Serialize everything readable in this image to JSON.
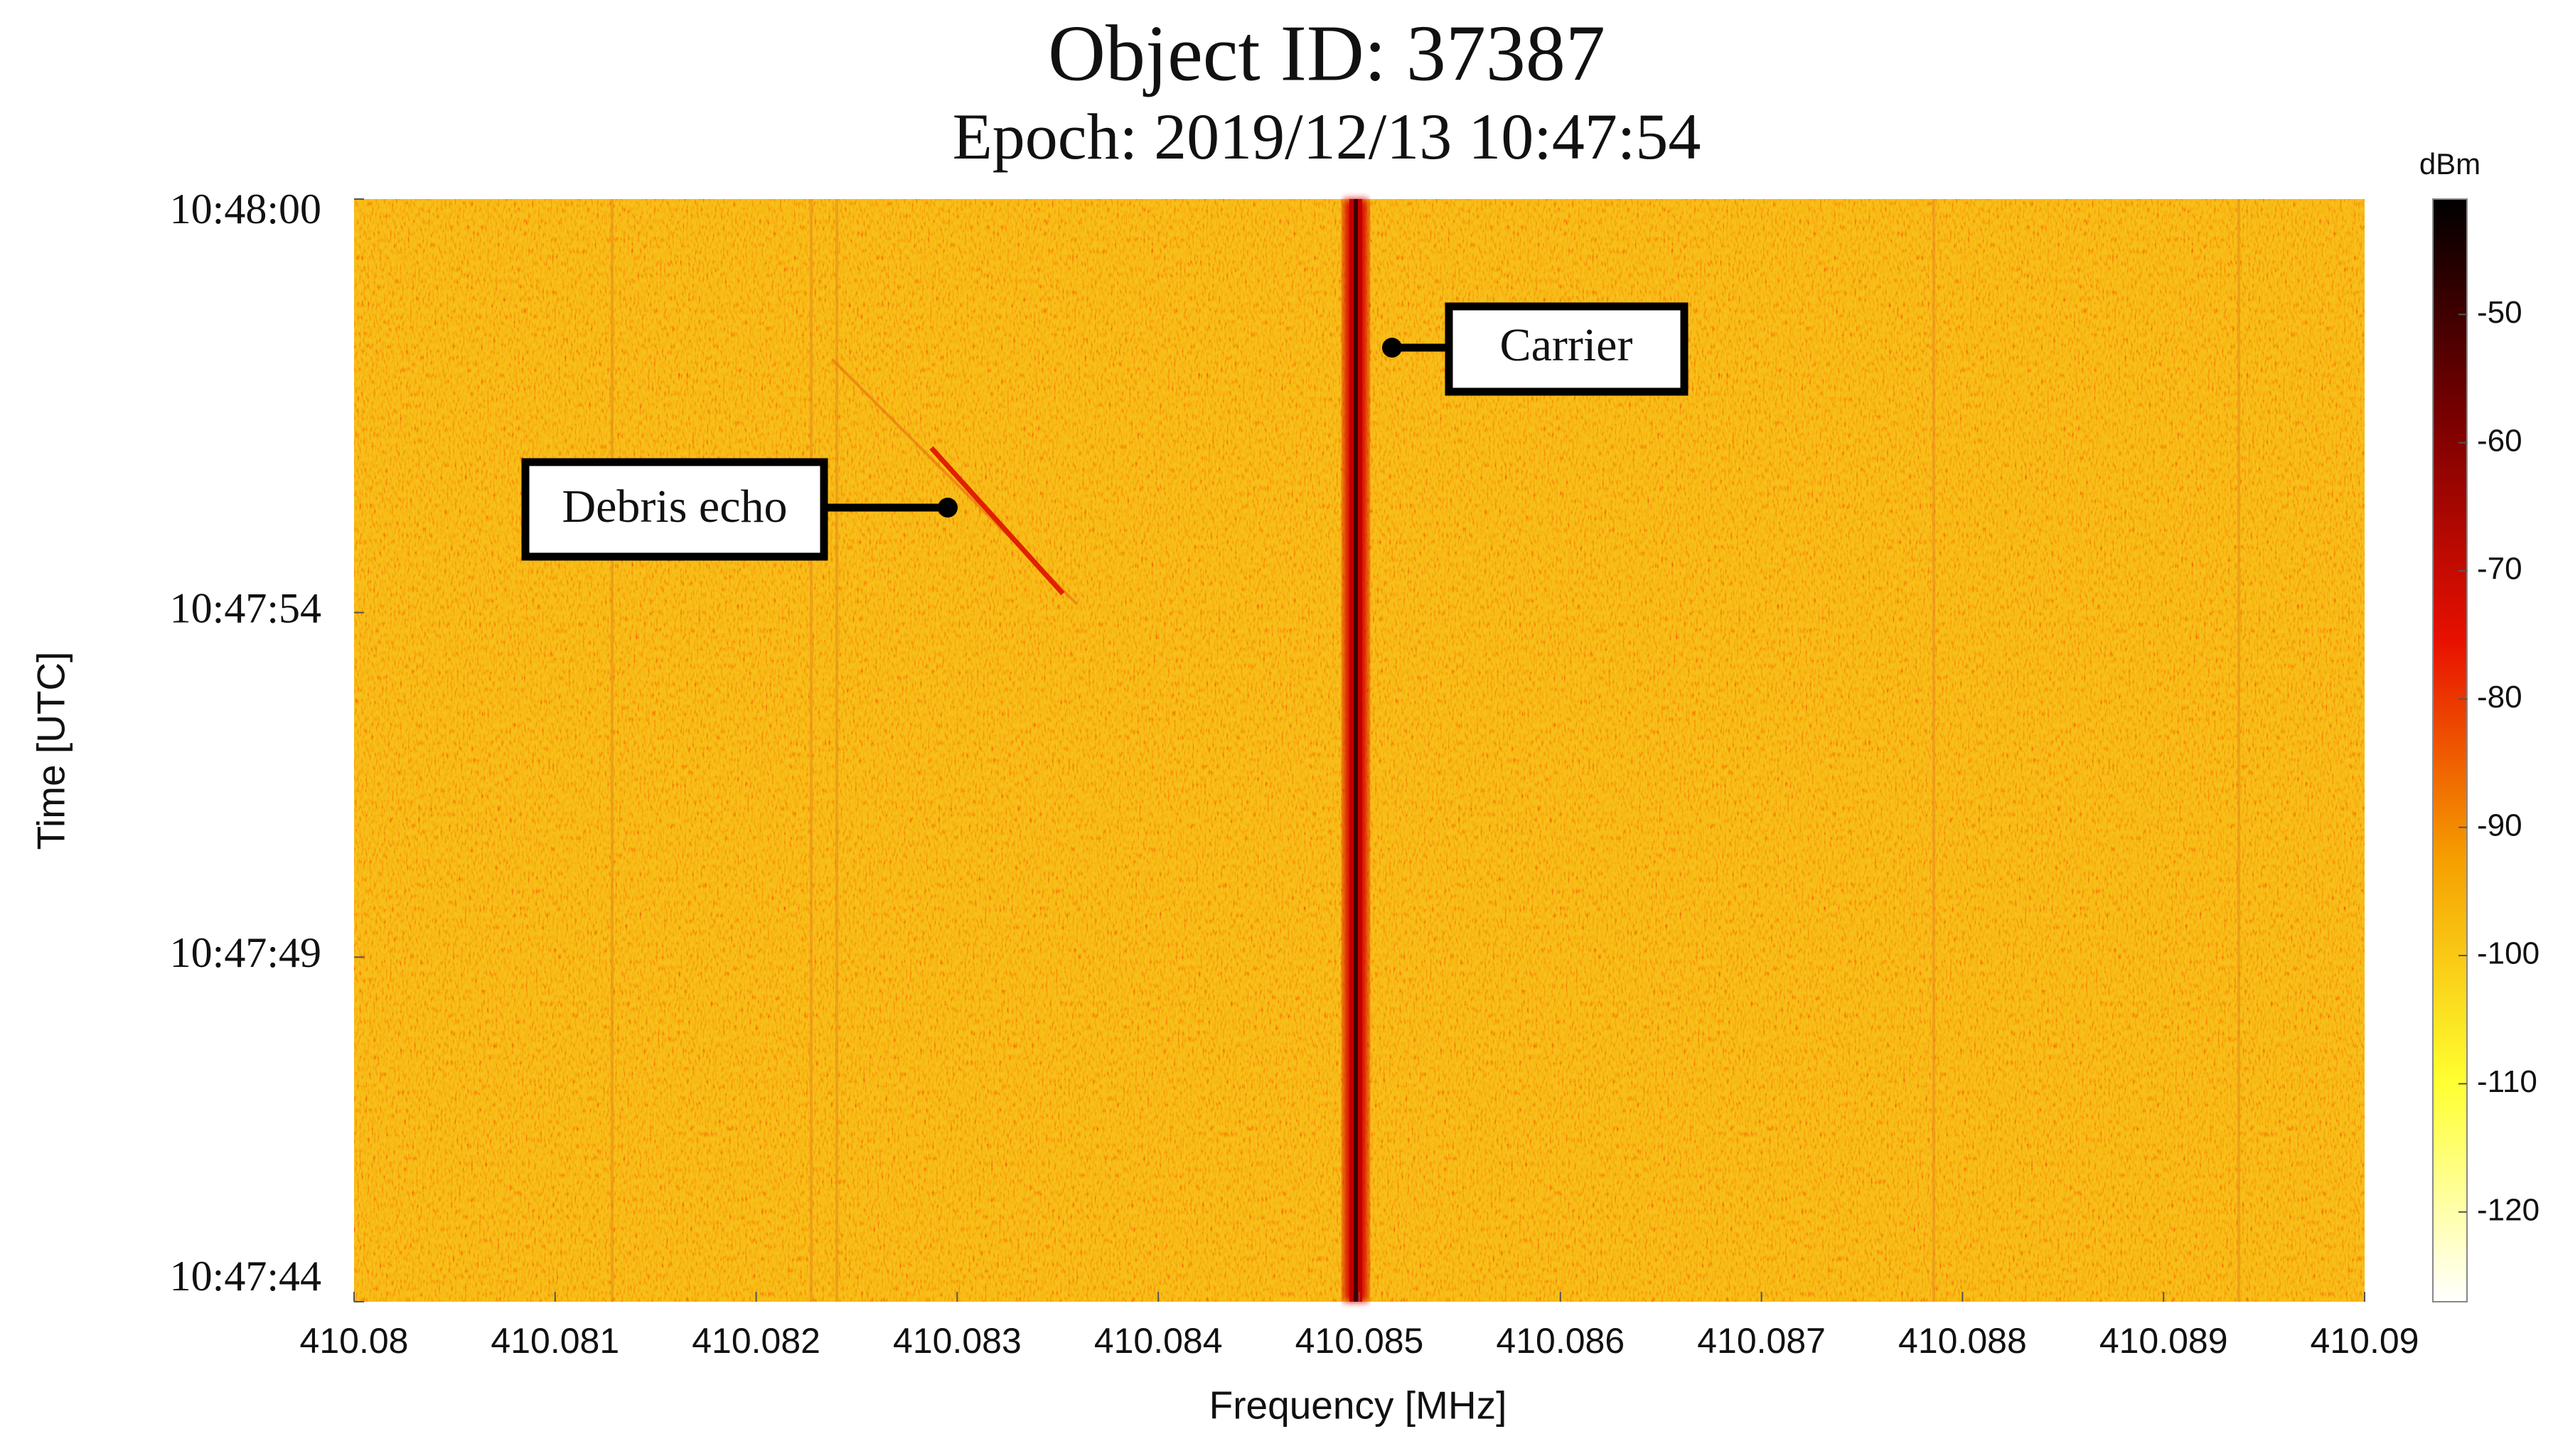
{
  "chart_data": {
    "type": "spectrogram",
    "title": "Object ID: 37387",
    "subtitle": "Epoch: 2019/12/13 10:47:54",
    "x_label": "Frequency [MHz]",
    "y_label": "Time [UTC]",
    "xlim": [
      410.08,
      410.09
    ],
    "xticks": [
      410.08,
      410.081,
      410.082,
      410.083,
      410.084,
      410.085,
      410.086,
      410.087,
      410.088,
      410.089,
      410.09
    ],
    "ylim": [
      "10:47:44",
      "10:48:00"
    ],
    "yticks": [
      "10:48:00",
      "10:47:54",
      "10:47:49",
      "10:47:44"
    ],
    "colorbar": {
      "label": "dBm",
      "clim": [
        -127,
        -41
      ],
      "ticks": [
        -50,
        -60,
        -70,
        -80,
        -90,
        -100,
        -110,
        -120
      ],
      "colormap": [
        "#ffffff",
        "#ffff30",
        "#f5a000",
        "#e81000",
        "#7a0000",
        "#000000"
      ]
    },
    "annotations": [
      "Carrier",
      "Debris echo"
    ]
  }
}
